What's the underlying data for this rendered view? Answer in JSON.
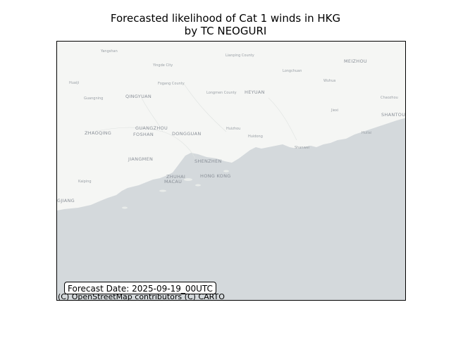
{
  "title_line1": "Forecasted likelihood of Cat 1 winds in HKG",
  "title_line2": "by TC NEOGURI",
  "forecast_label": "Forecast Date: 2025-09-19_00UTC",
  "attribution": "(C) OpenStreetMap contributors (C) CARTO",
  "colors": {
    "land": "#f5f6f4",
    "sea": "#d4d9dc",
    "label": "#9aa0a6"
  },
  "places": {
    "guangzhou": "GUANGZHOU",
    "foshan": "FOSHAN",
    "dongguan": "DONGGUAN",
    "shenzhen": "SHENZHEN",
    "hongkong": "HONG KONG",
    "zhuhai": "ZHUHAI",
    "macau": "MACAU",
    "zhaoqing": "ZHAOQING",
    "qingyuan": "QINGYUAN",
    "jiangmen": "JIANGMEN",
    "heyuan": "HEYUAN",
    "meizhou": "MEIZHOU",
    "shantou": "SHANTOU",
    "huizhou": "Huizhou",
    "yangjiang": "GJIANG",
    "shaoguan": "Yangshan",
    "yingde": "Yingde City",
    "fogang": "Fogang County",
    "lianping": "Lianping County",
    "longchuan": "Longchuan",
    "wuhua": "Wuhua",
    "chaozhou": "Chaozhou",
    "jiexi": "Jiexi",
    "huilai": "Huilai",
    "longmen": "Longmen County",
    "huidong": "Huidong",
    "shanwei": "Shanwei",
    "kaiping": "Kaiping",
    "guangning": "Guangning",
    "huaiji": "Huaiji"
  }
}
